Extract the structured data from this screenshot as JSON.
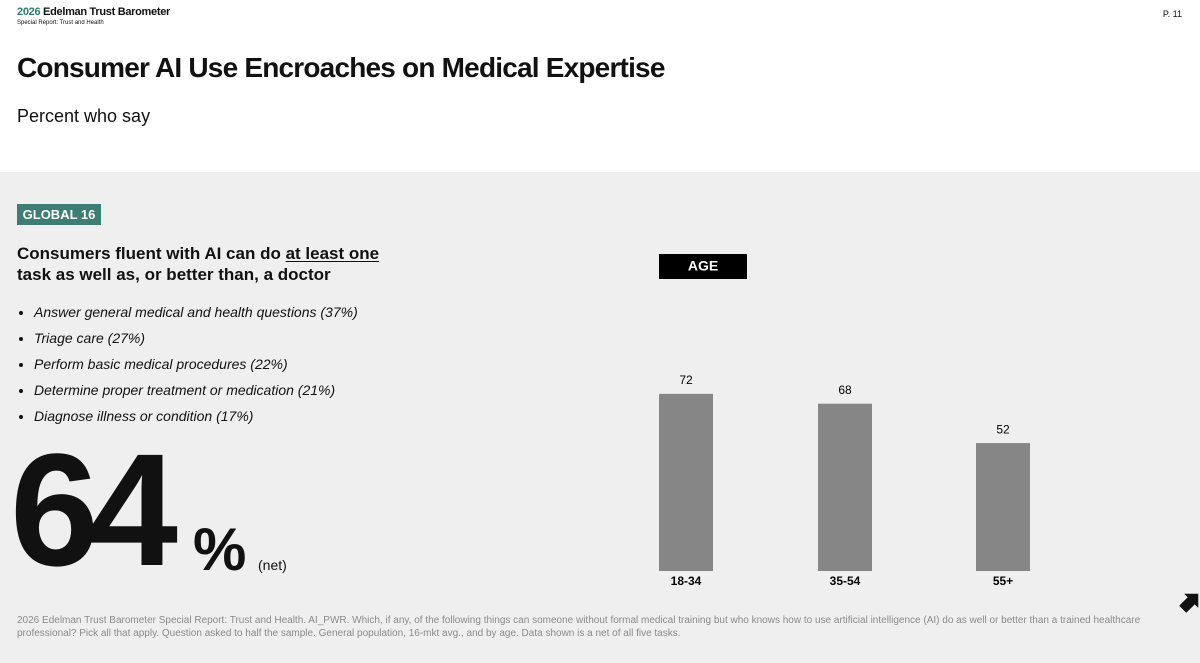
{
  "header": {
    "year": "2026",
    "brand": "Edelman Trust Barometer",
    "report": "Special Report: Trust and Health",
    "page": "P. 11"
  },
  "title": "Consumer AI Use Encroaches on Medical Expertise",
  "subtitle": "Percent who say",
  "badge": "GLOBAL 16",
  "headline": {
    "before": "Consumers fluent with AI can do ",
    "underlined": "at least one",
    "after": " task as well as, or better than, a doctor"
  },
  "tasks": [
    "Answer general medical and health questions (37%)",
    "Triage care (27%)",
    "Perform basic medical procedures (22%)",
    "Determine proper treatment or medication (21%)",
    "Diagnose illness or condition (17%)"
  ],
  "net": {
    "number": "64",
    "unit": "%",
    "note": "(net)"
  },
  "chart_data": {
    "type": "bar",
    "title": "AGE",
    "categories": [
      "18-34",
      "35-54",
      "55+"
    ],
    "values": [
      72,
      68,
      52
    ],
    "color": "#868686",
    "ylim": [
      0,
      100
    ]
  },
  "footnote": "2026 Edelman Trust Barometer Special Report: Trust and Health. AI_PWR. Which, if any, of the following things can someone without formal medical training but who knows how to use artificial intelligence (AI) do as well or better than a trained healthcare professional? Pick all that apply. Question asked to half the sample. General population, 16-mkt avg., and by age. Data shown is a net of all five tasks."
}
